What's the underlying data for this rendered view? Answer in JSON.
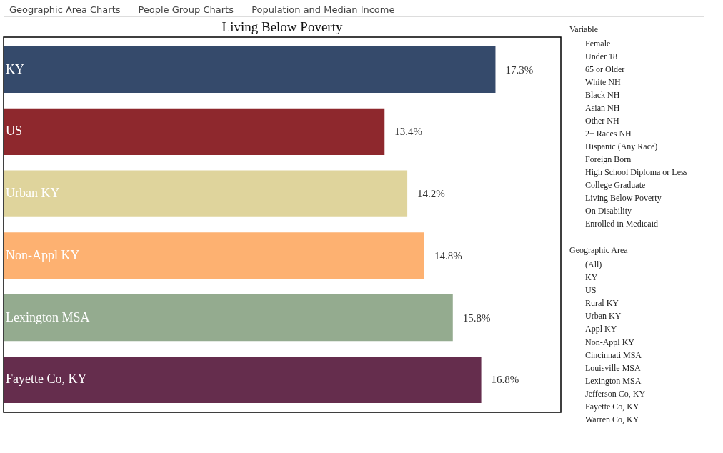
{
  "chart_data": [
    {
      "type": "bar",
      "orientation": "horizontal",
      "title": "Living Below Poverty",
      "categories": [
        "KY",
        "US",
        "Urban KY",
        "Non-Appl KY",
        "Lexington MSA",
        "Fayette Co, KY"
      ],
      "values": [
        17.3,
        13.4,
        14.2,
        14.8,
        15.8,
        16.8
      ],
      "colors": [
        "#354a6b",
        "#8e282d",
        "#dfd49c",
        "#fdb171",
        "#94ab8f",
        "#652d4d"
      ],
      "value_labels": [
        "17.3%",
        "13.4%",
        "14.2%",
        "14.8%",
        "15.8%",
        "16.8%"
      ],
      "xlim": [
        0,
        19.6
      ],
      "tick_labels": false
    },
    {
      "type": "other",
      "annotations": [
        "Geographic Area Charts",
        "People Group Charts",
        "Population and Median Income"
      ]
    },
    {
      "type": "other",
      "title": "Variable",
      "annotations": [
        "Female",
        "Under 18",
        "65 or Older",
        "White NH",
        "Black NH",
        "Asian NH",
        "Other NH",
        "2+ Races NH",
        "Hispanic (Any Race)",
        "Foreign Born",
        "High School Diploma or Less",
        "College Graduate",
        "Living Below Poverty",
        "On Disability",
        "Enrolled in Medicaid"
      ]
    },
    {
      "type": "other",
      "title": "Geographic Area",
      "annotations": [
        "(All)",
        "KY",
        "US",
        "Rural KY",
        "Urban KY",
        "Appl KY",
        "Non-Appl KY",
        "Cincinnati MSA",
        "Louisville MSA",
        "Lexington MSA",
        "Jefferson Co, KY",
        "Fayette Co, KY",
        "Warren Co, KY"
      ]
    }
  ]
}
